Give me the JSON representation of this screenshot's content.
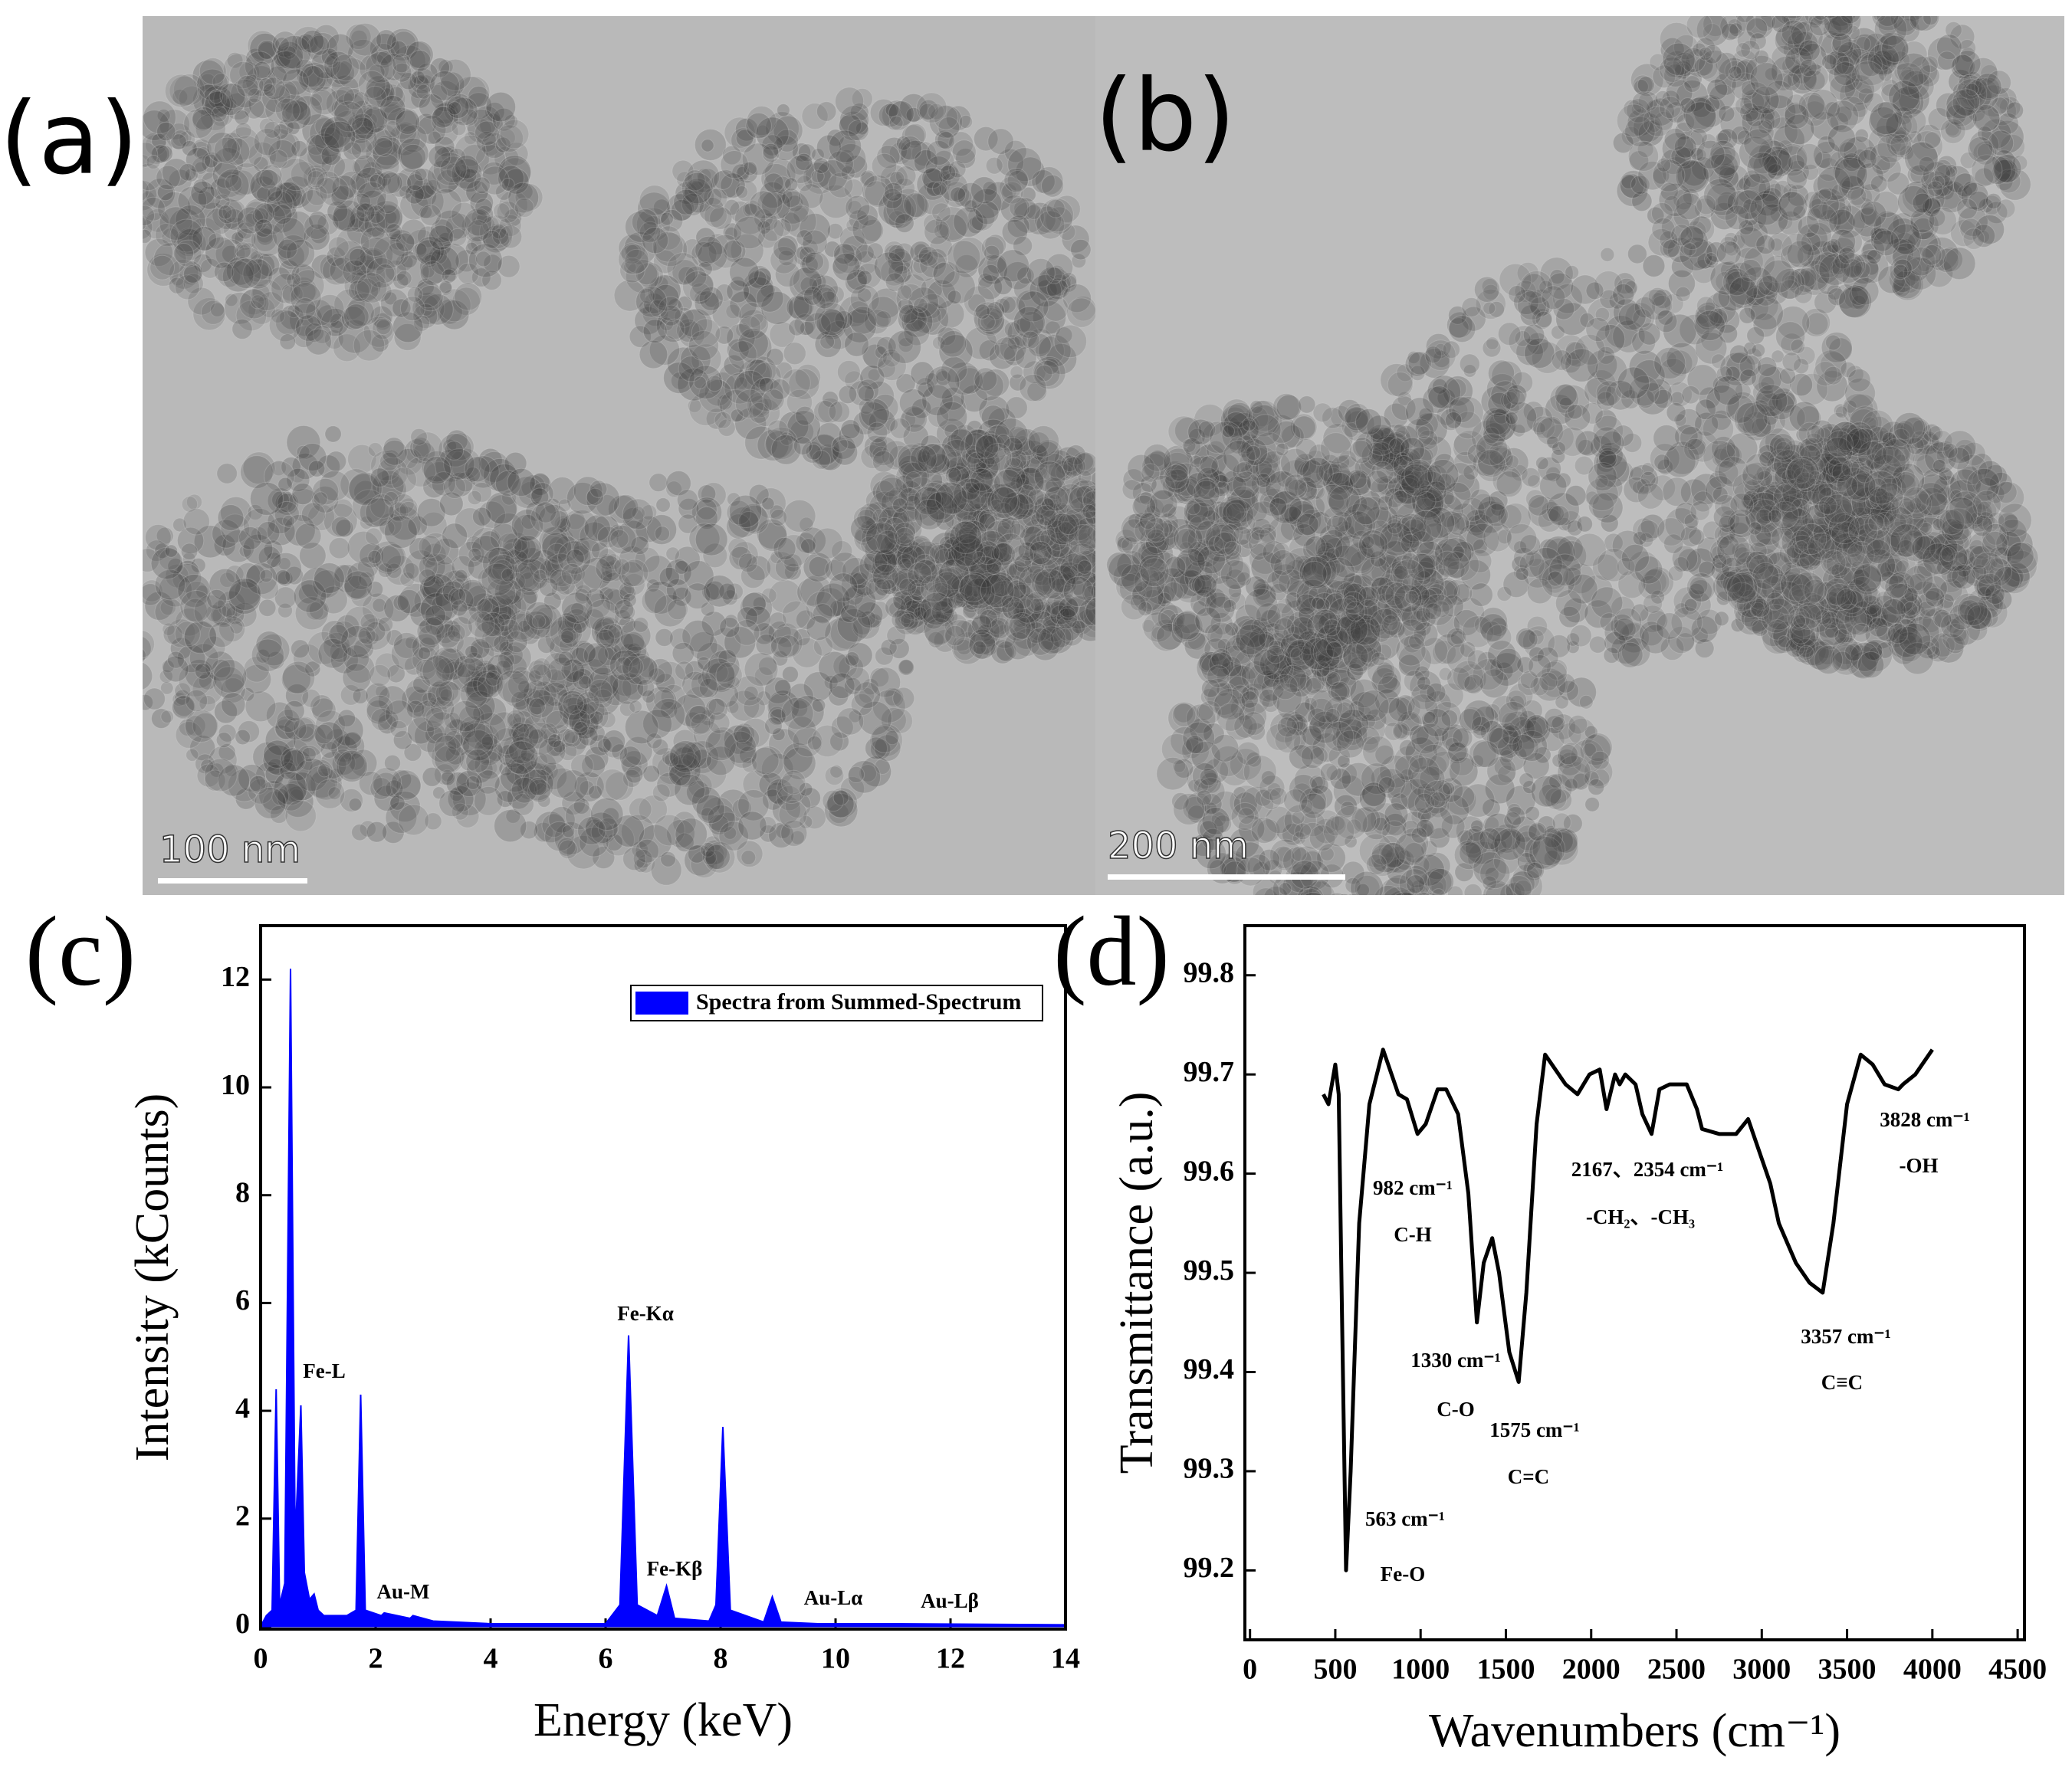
{
  "panels": [
    {
      "label": "(a)",
      "scale_bar": "100 nm"
    },
    {
      "label": "(b)",
      "scale_bar": "200 nm"
    }
  ],
  "chart_data": [
    {
      "type": "area",
      "panel_label": "(c)",
      "x_label": "Energy (keV)",
      "y_label": "Intensity (kCounts)",
      "x": [
        0,
        0.1,
        0.2,
        0.27,
        0.33,
        0.42,
        0.52,
        0.6,
        0.7,
        0.76,
        0.85,
        0.93,
        1.0,
        1.1,
        1.5,
        1.66,
        1.74,
        1.82,
        2.1,
        2.15,
        2.6,
        2.65,
        3.0,
        4.0,
        6.0,
        6.25,
        6.4,
        6.55,
        6.9,
        7.06,
        7.2,
        7.8,
        7.92,
        8.04,
        8.17,
        8.75,
        8.9,
        9.05,
        9.7,
        11,
        14
      ],
      "series": [
        {
          "name": "Spectra from Summed-Spectrum",
          "color": "#0000ff",
          "values": [
            0,
            0.2,
            0.3,
            4.4,
            0.4,
            0.8,
            12.2,
            1.6,
            4.1,
            1.0,
            0.5,
            0.6,
            0.3,
            0.2,
            0.2,
            0.3,
            4.3,
            0.3,
            0.2,
            0.25,
            0.15,
            0.2,
            0.1,
            0.05,
            0.05,
            0.4,
            5.4,
            0.4,
            0.2,
            0.75,
            0.15,
            0.1,
            0.4,
            3.7,
            0.3,
            0.08,
            0.55,
            0.08,
            0.05,
            0.05,
            0.03
          ]
        }
      ],
      "xlim": [
        0,
        14
      ],
      "xticks": [
        0,
        2,
        4,
        6,
        8,
        10,
        12,
        14
      ],
      "ylim": [
        -0.05,
        13
      ],
      "yticks": [
        0,
        2,
        4,
        6,
        8,
        10,
        12
      ],
      "legend": "upper right",
      "annotations": [
        {
          "text": "Fe-L"
        },
        {
          "text": "Au-M"
        },
        {
          "text": "Fe-Kα"
        },
        {
          "text": "Fe-Kβ"
        },
        {
          "text": "Au-Lα"
        },
        {
          "text": "Au-Lβ"
        }
      ]
    },
    {
      "type": "line",
      "panel_label": "(d)",
      "x_label": "Wavenumbers (cm⁻¹)",
      "y_label": "Transmittance (a.u.)",
      "x": [
        430,
        460,
        490,
        500,
        520,
        540,
        563,
        590,
        640,
        700,
        780,
        830,
        870,
        920,
        982,
        1030,
        1100,
        1150,
        1220,
        1280,
        1330,
        1370,
        1420,
        1460,
        1520,
        1575,
        1620,
        1680,
        1730,
        1790,
        1850,
        1920,
        1990,
        2050,
        2090,
        2140,
        2167,
        2200,
        2260,
        2300,
        2354,
        2400,
        2460,
        2560,
        2620,
        2650,
        2750,
        2850,
        2920,
        2970,
        3050,
        3100,
        3150,
        3200,
        3280,
        3357,
        3420,
        3500,
        3580,
        3650,
        3720,
        3800,
        3828,
        3900,
        4000
      ],
      "series": [
        {
          "name": "Transmittance",
          "color": "#000000",
          "values": [
            99.68,
            99.67,
            99.7,
            99.71,
            99.68,
            99.45,
            99.2,
            99.3,
            99.55,
            99.67,
            99.725,
            99.7,
            99.68,
            99.675,
            99.64,
            99.65,
            99.685,
            99.685,
            99.66,
            99.58,
            99.45,
            99.51,
            99.535,
            99.5,
            99.42,
            99.39,
            99.48,
            99.65,
            99.72,
            99.705,
            99.69,
            99.68,
            99.7,
            99.705,
            99.665,
            99.7,
            99.69,
            99.7,
            99.69,
            99.66,
            99.64,
            99.685,
            99.69,
            99.69,
            99.665,
            99.645,
            99.64,
            99.64,
            99.655,
            99.63,
            99.59,
            99.55,
            99.53,
            99.51,
            99.49,
            99.48,
            99.55,
            99.67,
            99.72,
            99.71,
            99.69,
            99.685,
            99.69,
            99.7,
            99.725
          ]
        }
      ],
      "xlim": [
        -30,
        4540
      ],
      "xticks": [
        0,
        500,
        1000,
        1500,
        2000,
        2500,
        3000,
        3500,
        4000,
        4500
      ],
      "ylim": [
        99.13,
        99.85
      ],
      "yticks": [
        99.2,
        99.3,
        99.4,
        99.5,
        99.6,
        99.7,
        99.8
      ],
      "annotations": [
        {
          "text": "563 cm⁻¹"
        },
        {
          "text": "Fe-O"
        },
        {
          "text": "982 cm⁻¹"
        },
        {
          "text": "C-H"
        },
        {
          "text": "1330 cm⁻¹"
        },
        {
          "text": "C-O"
        },
        {
          "text": "1575 cm⁻¹"
        },
        {
          "text": "C=C"
        },
        {
          "text": "2167、2354 cm⁻¹"
        },
        {
          "text": "-CH₂、-CH₃"
        },
        {
          "text": "3357 cm⁻¹"
        },
        {
          "text": "C≡C"
        },
        {
          "text": "3828 cm⁻¹"
        },
        {
          "text": "-OH"
        }
      ]
    }
  ]
}
